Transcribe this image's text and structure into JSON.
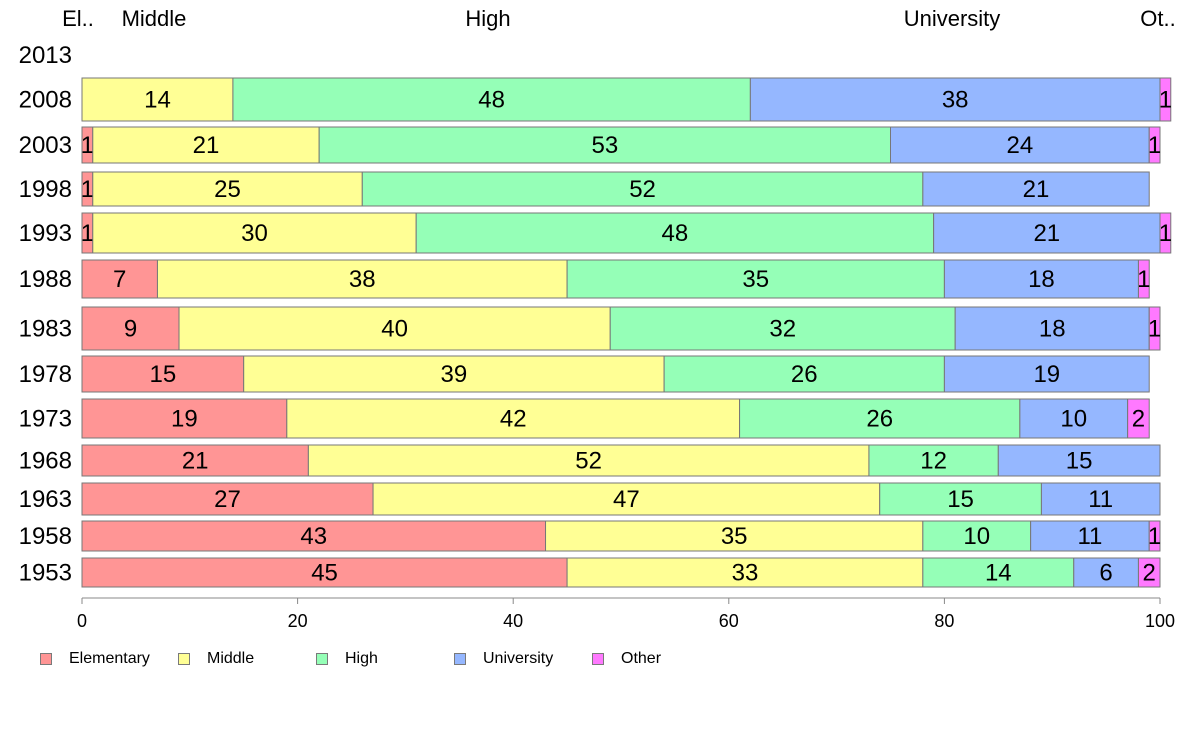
{
  "chart_data": {
    "type": "bar",
    "orientation": "horizontal",
    "stacked": true,
    "categories": [
      "1953",
      "1958",
      "1963",
      "1968",
      "1973",
      "1978",
      "1983",
      "1988",
      "1993",
      "1998",
      "2003",
      "2008",
      "2013"
    ],
    "series": [
      {
        "name": "Elementary",
        "color": "#ff9595",
        "top_label": "El..",
        "values": [
          45,
          43,
          27,
          21,
          19,
          15,
          9,
          7,
          1,
          1,
          1,
          0,
          0
        ]
      },
      {
        "name": "Middle",
        "color": "#ffff95",
        "top_label": "Middle",
        "values": [
          33,
          35,
          47,
          52,
          42,
          39,
          40,
          38,
          30,
          25,
          21,
          14,
          0
        ]
      },
      {
        "name": "High",
        "color": "#95ffb7",
        "top_label": "High",
        "values": [
          14,
          10,
          15,
          12,
          26,
          26,
          32,
          35,
          48,
          52,
          53,
          48,
          0
        ]
      },
      {
        "name": "University",
        "color": "#95b7ff",
        "top_label": "University",
        "values": [
          6,
          11,
          11,
          15,
          10,
          19,
          18,
          18,
          21,
          21,
          24,
          38,
          0
        ]
      },
      {
        "name": "Other",
        "color": "#ff79ff",
        "top_label": "Ot..",
        "values": [
          2,
          1,
          0,
          0,
          2,
          0,
          1,
          1,
          1,
          0,
          1,
          1,
          0
        ]
      }
    ],
    "data_labels": [
      [
        "45",
        "33",
        "14",
        "6",
        "2"
      ],
      [
        "43",
        "35",
        "10",
        "11",
        "1"
      ],
      [
        "27",
        "47",
        "15",
        "11",
        ""
      ],
      [
        "21",
        "52",
        "12",
        "15",
        ""
      ],
      [
        "19",
        "42",
        "26",
        "10",
        "2"
      ],
      [
        "15",
        "39",
        "26",
        "19",
        ""
      ],
      [
        "9",
        "40",
        "32",
        "18",
        "1"
      ],
      [
        "7",
        "38",
        "35",
        "18",
        "1"
      ],
      [
        "1",
        "30",
        "48",
        "21",
        "1"
      ],
      [
        "1",
        "25",
        "52",
        "21",
        ""
      ],
      [
        "1",
        "21",
        "53",
        "24",
        "1"
      ],
      [
        "",
        "14",
        "48",
        "38",
        "1"
      ],
      [
        "",
        "",
        "",
        "",
        ""
      ]
    ],
    "xlim": [
      0,
      100
    ],
    "x_ticks": [
      "0",
      "20",
      "40",
      "60",
      "80",
      "100"
    ],
    "legend_position": "bottom-left",
    "grid": false,
    "title": "",
    "xlabel": "",
    "ylabel": ""
  }
}
